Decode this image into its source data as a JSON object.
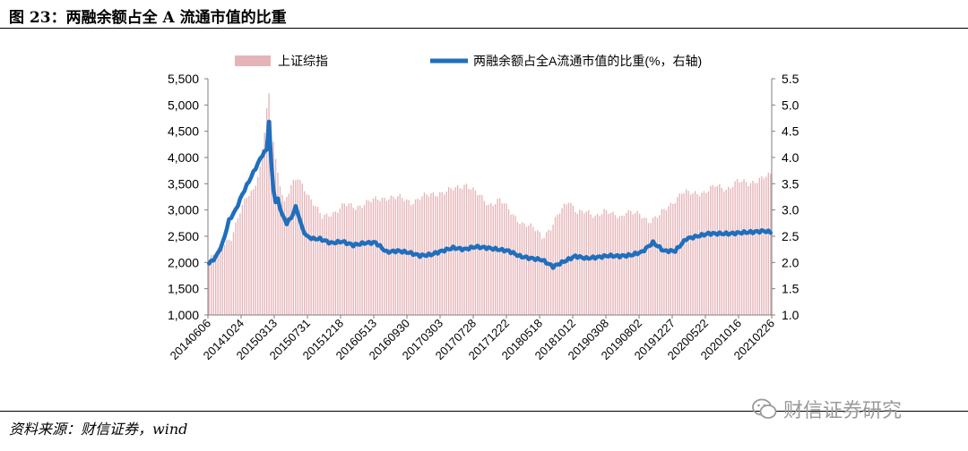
{
  "figure": {
    "title": "图 23：两融余额占全 A 流通市值的比重",
    "source": "资料来源：财信证券，wind",
    "watermark": "财信证券研究"
  },
  "colors": {
    "bar": "#e6b4b8",
    "line": "#1f6fbd",
    "axis": "#7f7f7f"
  },
  "chart_data": {
    "type": "bar+line",
    "title": "",
    "xlabel": "",
    "ylabel": "",
    "legend_position": "top-center",
    "grid": false,
    "x_ticks": [
      "20140606",
      "20141024",
      "20150313",
      "20150731",
      "20151218",
      "20160513",
      "20160930",
      "20170303",
      "20170728",
      "20171222",
      "20180518",
      "20181012",
      "20190308",
      "20190802",
      "20191227",
      "20200522",
      "20201016",
      "20210226"
    ],
    "left_axis": {
      "min": 1000,
      "max": 5500,
      "ticks": [
        "1,000",
        "1,500",
        "2,000",
        "2,500",
        "3,000",
        "3,500",
        "4,000",
        "4,500",
        "5,000",
        "5,500"
      ]
    },
    "right_axis": {
      "min": 1.0,
      "max": 5.5,
      "ticks": [
        "1.0",
        "1.5",
        "2.0",
        "2.5",
        "3.0",
        "3.5",
        "4.0",
        "4.5",
        "5.0",
        "5.5"
      ]
    },
    "series": [
      {
        "name": "上证综指",
        "type": "bar",
        "axis": "left",
        "x_index": [
          0,
          3,
          6,
          10,
          14,
          17,
          20,
          23,
          24,
          25,
          26,
          27,
          28,
          30,
          31,
          34,
          37,
          40,
          44,
          51,
          56,
          61,
          66,
          71,
          76,
          81,
          86,
          91,
          96,
          101,
          106,
          111,
          116,
          121,
          126,
          131,
          136,
          141,
          146,
          148,
          150,
          154,
          158,
          162,
          166,
          170,
          174,
          178,
          182,
          186,
          188,
          190,
          194,
          198,
          203,
          208,
          213,
          218,
          223,
          228,
          233,
          238,
          243,
          248,
          253
        ],
        "values": [
          2030,
          2180,
          2350,
          2480,
          2950,
          3250,
          3400,
          3800,
          4150,
          4500,
          4900,
          5150,
          4700,
          3950,
          3700,
          3150,
          3450,
          3600,
          3350,
          2850,
          2950,
          3100,
          3050,
          3150,
          3200,
          3250,
          3230,
          3150,
          3250,
          3300,
          3350,
          3400,
          3500,
          3300,
          3100,
          3200,
          2950,
          2750,
          2650,
          2600,
          2500,
          2650,
          2950,
          3200,
          2950,
          2950,
          2900,
          2980,
          2900,
          2880,
          3000,
          2950,
          2900,
          2800,
          2900,
          3100,
          3350,
          3300,
          3350,
          3450,
          3400,
          3550,
          3500,
          3600,
          3650
        ]
      },
      {
        "name": "两融余额占全A流通市值的比重(%，右轴)",
        "type": "line",
        "axis": "right",
        "x_index": [
          0,
          3,
          6,
          9,
          12,
          15,
          18,
          21,
          24,
          26,
          27,
          28,
          29,
          30,
          31,
          33,
          35,
          37,
          39,
          40,
          42,
          44,
          47,
          50,
          55,
          60,
          65,
          70,
          75,
          80,
          85,
          90,
          95,
          100,
          105,
          110,
          115,
          120,
          125,
          130,
          135,
          140,
          145,
          150,
          155,
          160,
          165,
          170,
          175,
          180,
          185,
          190,
          195,
          200,
          205,
          210,
          215,
          220,
          225,
          230,
          235,
          240,
          245,
          250,
          253
        ],
        "values": [
          1.98,
          2.1,
          2.35,
          2.8,
          3.0,
          3.3,
          3.55,
          3.8,
          4.05,
          4.15,
          4.7,
          3.9,
          3.4,
          3.15,
          3.2,
          2.9,
          2.75,
          2.85,
          3.05,
          2.95,
          2.65,
          2.5,
          2.45,
          2.45,
          2.37,
          2.4,
          2.33,
          2.37,
          2.38,
          2.2,
          2.22,
          2.19,
          2.13,
          2.15,
          2.22,
          2.28,
          2.25,
          2.3,
          2.28,
          2.25,
          2.22,
          2.12,
          2.08,
          2.05,
          1.92,
          2.02,
          2.12,
          2.08,
          2.1,
          2.13,
          2.12,
          2.14,
          2.2,
          2.38,
          2.22,
          2.22,
          2.45,
          2.5,
          2.55,
          2.55,
          2.55,
          2.57,
          2.58,
          2.6,
          2.58
        ]
      }
    ]
  }
}
